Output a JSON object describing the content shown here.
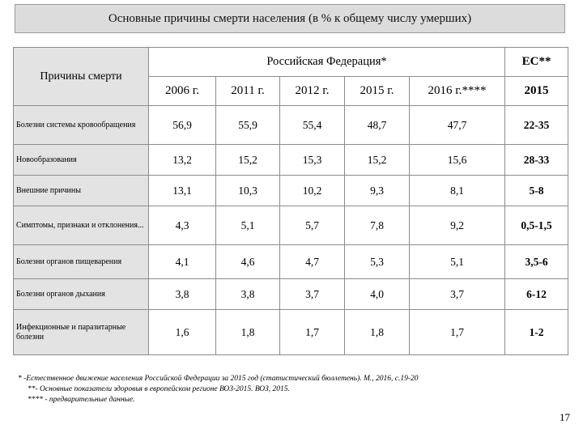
{
  "title": "Основные причины смерти населения (в % к общему числу умерших)",
  "header": {
    "cause_label": "Причины смерти",
    "rf_label": "Российская Федерация*",
    "eu_label": "ЕС**",
    "years": [
      "2006 г.",
      "2011 г.",
      "2012 г.",
      "2015 г.",
      "2016 г.****"
    ],
    "eu_year": "2015"
  },
  "rows": [
    {
      "cause": "Болезни системы кровообращения",
      "values": [
        "56,9",
        "55,9",
        "55,4",
        "48,7",
        "47,7"
      ],
      "eu": "22-35"
    },
    {
      "cause": "Новообразования",
      "values": [
        "13,2",
        "15,2",
        "15,3",
        "15,2",
        "15,6"
      ],
      "eu": "28-33"
    },
    {
      "cause": "Внешние причины",
      "values": [
        "13,1",
        "10,3",
        "10,2",
        "9,3",
        "8,1"
      ],
      "eu": "5-8"
    },
    {
      "cause": "Симптомы, признаки и отклонения...",
      "values": [
        "4,3",
        "5,1",
        "5,7",
        "7,8",
        "9,2"
      ],
      "eu": "0,5-1,5"
    },
    {
      "cause": "Болезни органов пищеварения",
      "values": [
        "4,1",
        "4,6",
        "4,7",
        "5,3",
        "5,1"
      ],
      "eu": "3,5-6"
    },
    {
      "cause": "Болезни органов дыхания",
      "values": [
        "3,8",
        "3,8",
        "3,7",
        "4,0",
        "3,7"
      ],
      "eu": "6-12"
    },
    {
      "cause": "Инфекционные и паразитарные болезни",
      "values": [
        "1,6",
        "1,8",
        "1,7",
        "1,8",
        "1,7"
      ],
      "eu": "1-2"
    }
  ],
  "footnotes": [
    "* -Естественное движение населения Российской Федерации за 2015 год (статистический бюллетень). М., 2016, с.19-20",
    "**- Основные показатели здоровья в европейском регионе ВОЗ-2015. ВОЗ, 2015.",
    "**** - предварительные данные."
  ],
  "page_number": "17"
}
